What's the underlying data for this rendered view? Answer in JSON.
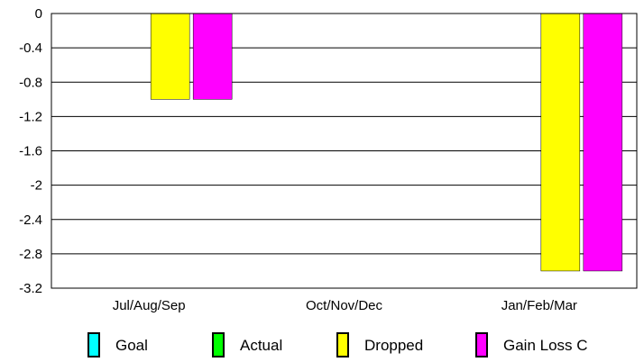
{
  "chart_data": {
    "type": "bar",
    "categories": [
      "Jul/Aug/Sep",
      "Oct/Nov/Dec",
      "Jan/Feb/Mar"
    ],
    "series": [
      {
        "name": "Goal",
        "color": "#00ffff",
        "values": [
          0,
          0,
          0
        ]
      },
      {
        "name": "Actual",
        "color": "#00ff00",
        "values": [
          0,
          0,
          0
        ]
      },
      {
        "name": "Dropped",
        "color": "#ffff00",
        "values": [
          -1,
          0,
          -3
        ]
      },
      {
        "name": "Gain Loss C",
        "color": "#ff00ff",
        "values": [
          -1,
          0,
          -3
        ]
      }
    ],
    "yticks": [
      "0",
      "-0.4",
      "-0.8",
      "-1.2",
      "-1.6",
      "-2",
      "-2.4",
      "-2.8",
      "-3.2"
    ],
    "ylim": [
      -3.2,
      0
    ],
    "grid": true,
    "legend_position": "bottom"
  }
}
